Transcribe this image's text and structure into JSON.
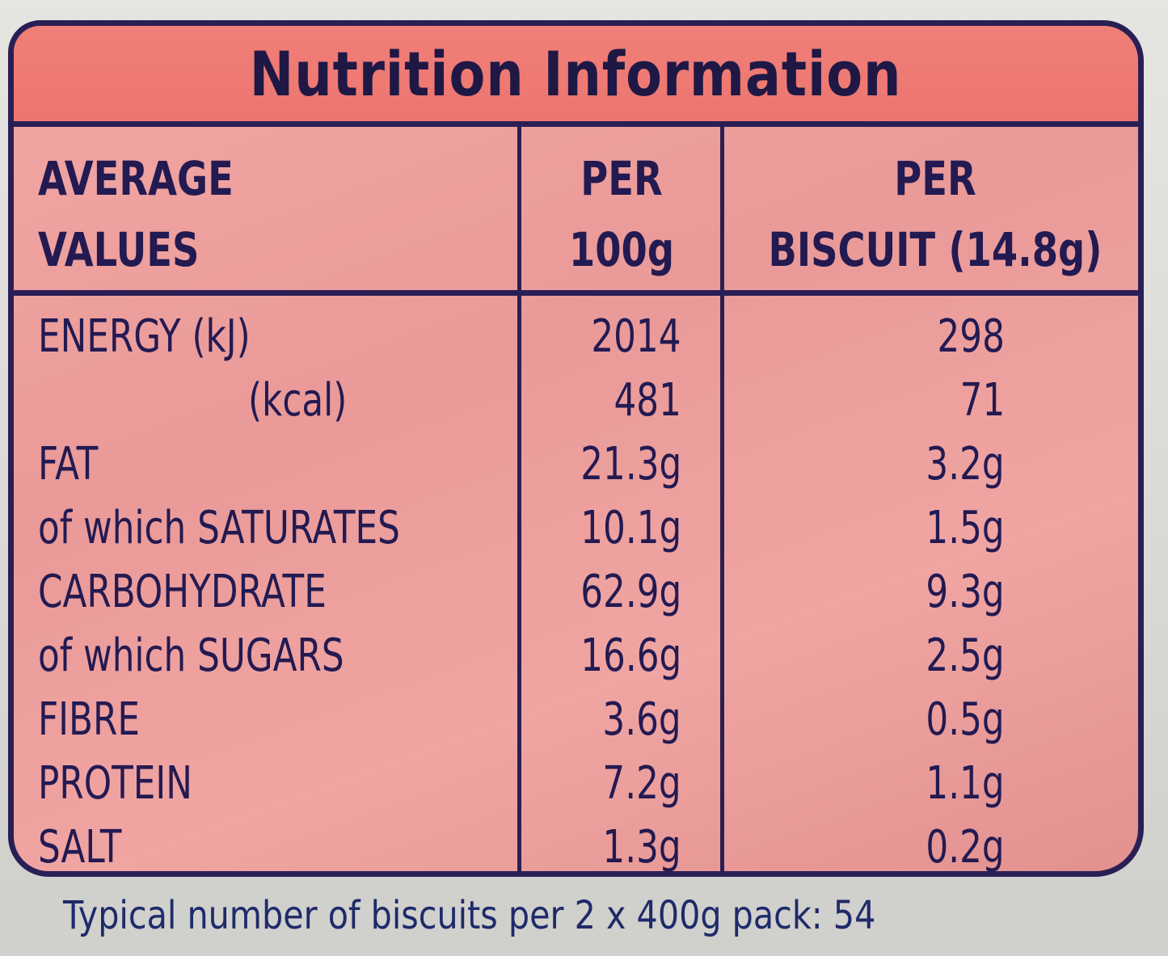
{
  "title": "Nutrition Information",
  "header": {
    "col1_line1": "AVERAGE",
    "col1_line2": "VALUES",
    "col2_line1": "PER",
    "col2_line2": "100g",
    "col3_line1": "PER",
    "col3_line2": "BISCUIT (14.8g)"
  },
  "rows": [
    {
      "name": "ENERGY (kJ)",
      "per_100g": "2014",
      "per_biscuit": "298"
    },
    {
      "name": "(kcal)",
      "per_100g": "481",
      "per_biscuit": "71"
    },
    {
      "name": "FAT",
      "per_100g": "21.3g",
      "per_biscuit": "3.2g"
    },
    {
      "name": "of which SATURATES",
      "per_100g": "10.1g",
      "per_biscuit": "1.5g"
    },
    {
      "name": "CARBOHYDRATE",
      "per_100g": "62.9g",
      "per_biscuit": "9.3g"
    },
    {
      "name": "of which SUGARS",
      "per_100g": "16.6g",
      "per_biscuit": "2.5g"
    },
    {
      "name": "FIBRE",
      "per_100g": "3.6g",
      "per_biscuit": "0.5g"
    },
    {
      "name": "PROTEIN",
      "per_100g": "7.2g",
      "per_biscuit": "1.1g"
    },
    {
      "name": "SALT",
      "per_100g": "1.3g",
      "per_biscuit": "0.2g"
    }
  ],
  "footer": "Typical number of biscuits per 2 x 400g pack: 54",
  "colors": {
    "title_band": "#ef7a74",
    "table_bg": "#eea1a0",
    "ink": "#231a52",
    "background": "#dcdcd8"
  }
}
